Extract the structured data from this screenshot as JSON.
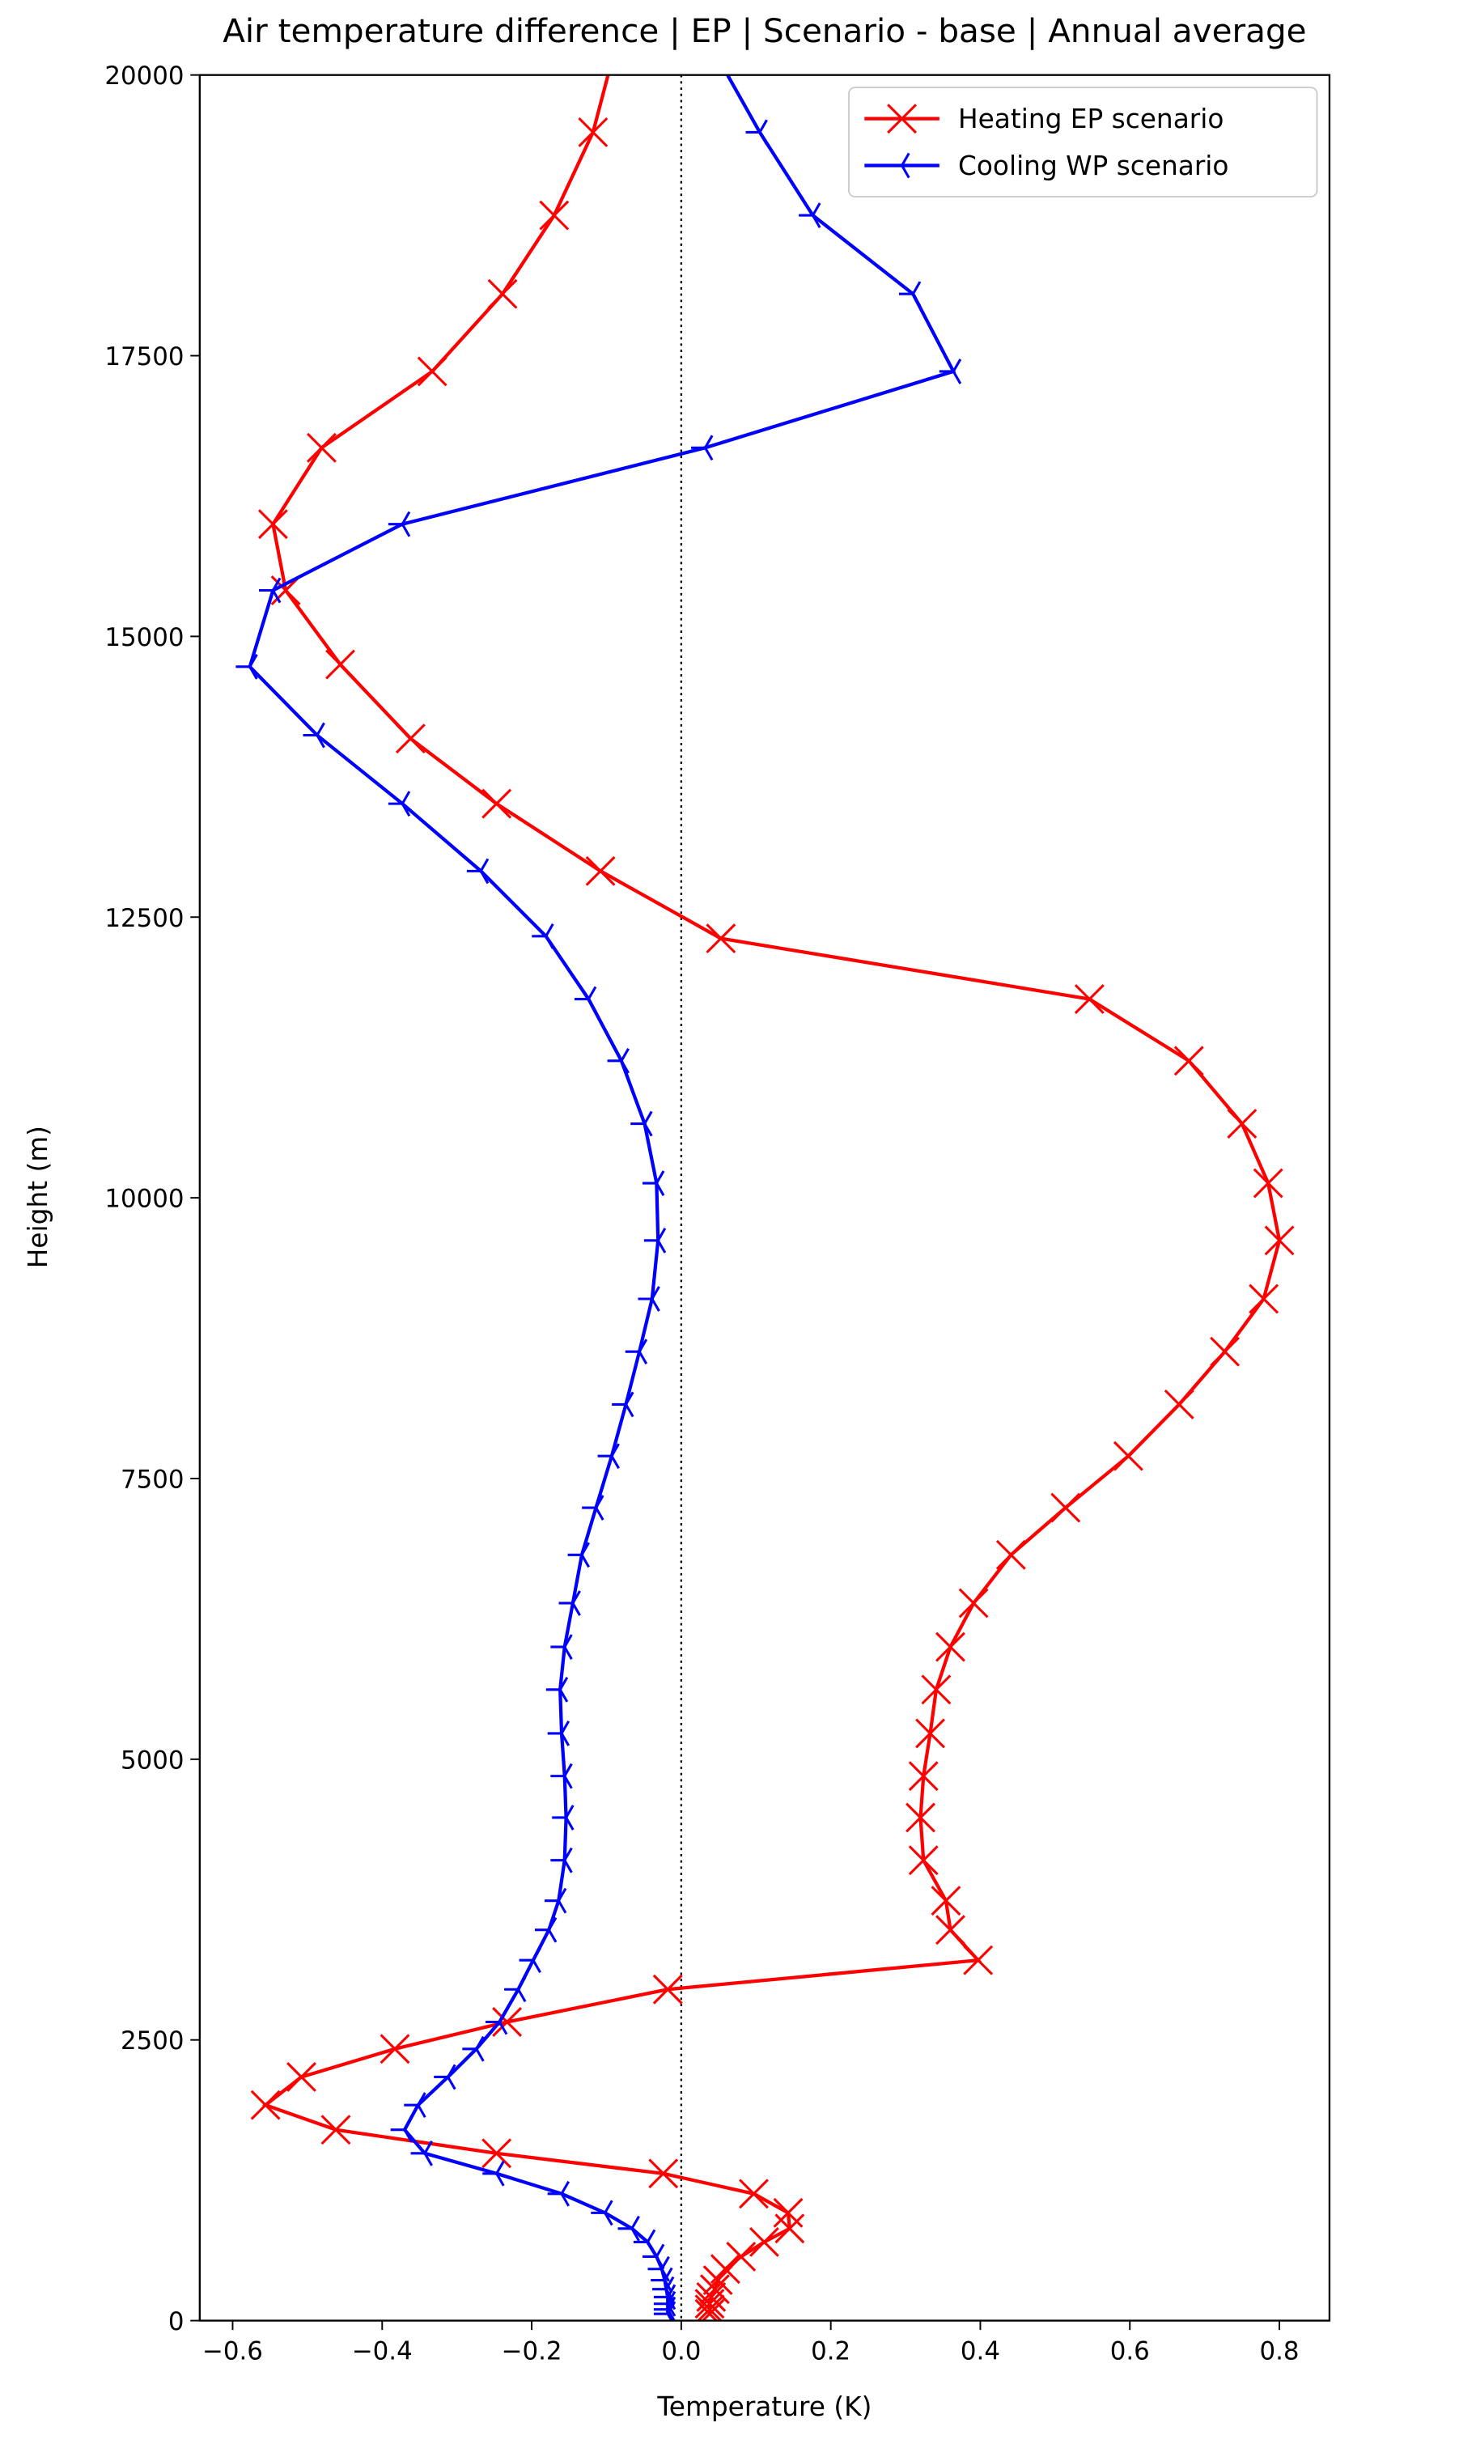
{
  "chart_data": {
    "type": "line",
    "title": "Air temperature difference | EP | Scenario - base | Annual average",
    "x_label": "Temperature (K)",
    "y_label": "Height (m)",
    "xlim": [
      -0.644,
      0.867
    ],
    "ylim": [
      0,
      20000
    ],
    "xticks": [
      {
        "value": -0.6,
        "label": "−0.6"
      },
      {
        "value": -0.4,
        "label": "−0.4"
      },
      {
        "value": -0.2,
        "label": "−0.2"
      },
      {
        "value": 0,
        "label": "0.0"
      },
      0.2,
      0.4,
      0.6,
      0.8
    ],
    "yticks": [
      0,
      2500,
      5000,
      7500,
      10000,
      12500,
      15000,
      17500,
      20000
    ],
    "reference_line_x": 0,
    "legend": "upper right",
    "series": [
      {
        "name": "Heating EP scenario",
        "color": "#ff0000",
        "marker": "x",
        "x": [
          -0.09,
          -0.118,
          -0.17,
          -0.239,
          -0.333,
          -0.481,
          -0.546,
          -0.529,
          -0.456,
          -0.362,
          -0.247,
          -0.108,
          0.053,
          0.546,
          0.679,
          0.75,
          0.785,
          0.8,
          0.779,
          0.727,
          0.666,
          0.598,
          0.514,
          0.441,
          0.391,
          0.36,
          0.341,
          0.333,
          0.324,
          0.32,
          0.324,
          0.354,
          0.36,
          0.397,
          -0.018,
          -0.233,
          -0.383,
          -0.508,
          -0.556,
          -0.462,
          -0.247,
          -0.024,
          0.097,
          0.143,
          0.145,
          0.111,
          0.08,
          0.059,
          0.049,
          0.045,
          0.04,
          0.038,
          0.038,
          0.038
        ],
        "values": [
          20200,
          19490,
          18750,
          18050,
          17360,
          16680,
          16000,
          15410,
          14750,
          14090,
          13510,
          12910,
          12310,
          11770,
          11220,
          10660,
          10130,
          9620,
          9100,
          8630,
          8160,
          7700,
          7240,
          6820,
          6390,
          6000,
          5620,
          5230,
          4850,
          4480,
          4100,
          3740,
          3480,
          3210,
          2950,
          2660,
          2420,
          2170,
          1920,
          1700,
          1490,
          1310,
          1130,
          960,
          820,
          700,
          570,
          460,
          360,
          280,
          210,
          150,
          100,
          60
        ]
      },
      {
        "name": "Cooling WP scenario",
        "color": "#0000ff",
        "marker": "tri_left",
        "x": [
          0.045,
          0.105,
          0.176,
          0.31,
          0.364,
          0.032,
          -0.373,
          -0.546,
          -0.577,
          -0.487,
          -0.373,
          -0.268,
          -0.181,
          -0.124,
          -0.08,
          -0.049,
          -0.033,
          -0.031,
          -0.039,
          -0.056,
          -0.074,
          -0.093,
          -0.114,
          -0.133,
          -0.145,
          -0.156,
          -0.162,
          -0.16,
          -0.156,
          -0.154,
          -0.156,
          -0.164,
          -0.177,
          -0.198,
          -0.218,
          -0.243,
          -0.274,
          -0.312,
          -0.352,
          -0.37,
          -0.343,
          -0.247,
          -0.16,
          -0.102,
          -0.066,
          -0.045,
          -0.033,
          -0.026,
          -0.022,
          -0.02,
          -0.018,
          -0.018,
          -0.018,
          -0.018
        ],
        "values": [
          20200,
          19490,
          18750,
          18050,
          17360,
          16680,
          16000,
          15410,
          14730,
          14120,
          13510,
          12910,
          12330,
          11770,
          11220,
          10660,
          10130,
          9620,
          9100,
          8630,
          8160,
          7700,
          7240,
          6820,
          6390,
          6000,
          5620,
          5230,
          4850,
          4480,
          4100,
          3740,
          3480,
          3210,
          2950,
          2660,
          2420,
          2170,
          1920,
          1700,
          1490,
          1310,
          1130,
          960,
          820,
          700,
          570,
          460,
          360,
          280,
          210,
          150,
          100,
          60
        ]
      }
    ]
  }
}
